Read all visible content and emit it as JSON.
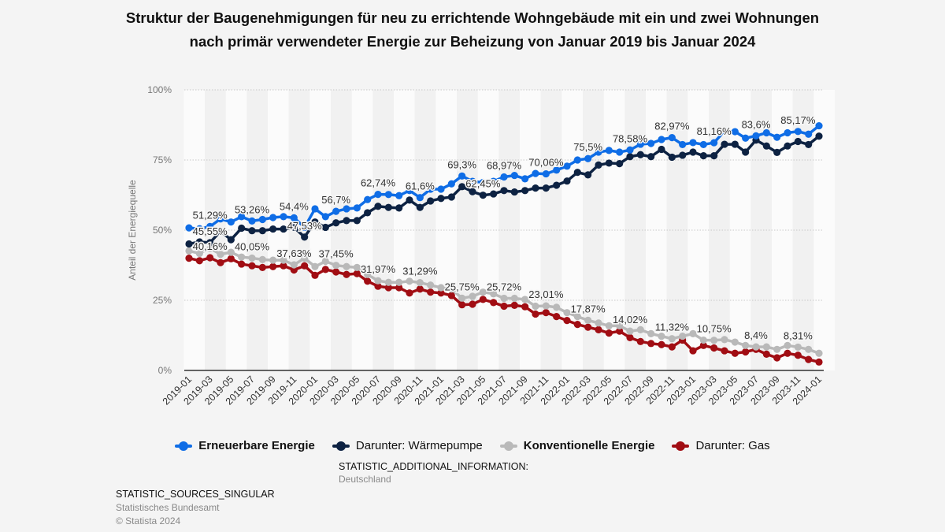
{
  "chart_data": {
    "type": "line",
    "title": "Struktur der Baugenehmigungen für neu zu errichtende Wohngebäude mit ein und zwei Wohnungen nach primär verwendeter Energie zur Beheizung von Januar 2019 bis Januar 2024",
    "ylabel": "Anteil der Energiequelle",
    "xlabel": "",
    "ylim": [
      0,
      100
    ],
    "yticks": [
      "0%",
      "25%",
      "50%",
      "75%",
      "100%"
    ],
    "ytick_values": [
      0,
      25,
      50,
      75,
      100
    ],
    "grid": true,
    "legend_placement": "bottom",
    "x": [
      "2019-01",
      "2019-02",
      "2019-03",
      "2019-04",
      "2019-05",
      "2019-06",
      "2019-07",
      "2019-08",
      "2019-09",
      "2019-10",
      "2019-11",
      "2019-12",
      "2020-01",
      "2020-02",
      "2020-03",
      "2020-04",
      "2020-05",
      "2020-06",
      "2020-07",
      "2020-08",
      "2020-09",
      "2020-10",
      "2020-11",
      "2020-12",
      "2021-01",
      "2021-02",
      "2021-03",
      "2021-04",
      "2021-05",
      "2021-06",
      "2021-07",
      "2021-08",
      "2021-09",
      "2021-10",
      "2021-11",
      "2021-12",
      "2022-01",
      "2022-02",
      "2022-03",
      "2022-04",
      "2022-05",
      "2022-06",
      "2022-07",
      "2022-08",
      "2022-09",
      "2022-10",
      "2022-11",
      "2022-12",
      "2023-01",
      "2023-02",
      "2023-03",
      "2023-04",
      "2023-05",
      "2023-06",
      "2023-07",
      "2023-08",
      "2023-09",
      "2023-10",
      "2023-11",
      "2023-12",
      "2024-01"
    ],
    "xtick_labels": [
      "2019-01",
      "2019-03",
      "2019-05",
      "2019-07",
      "2019-09",
      "2019-11",
      "2020-01",
      "2020-03",
      "2020-05",
      "2020-07",
      "2020-09",
      "2020-11",
      "2021-01",
      "2021-03",
      "2021-05",
      "2021-07",
      "2021-09",
      "2021-11",
      "2022-01",
      "2022-03",
      "2022-05",
      "2022-07",
      "2022-09",
      "2022-11",
      "2023-01",
      "2023-03",
      "2023-05",
      "2023-07",
      "2023-09",
      "2023-11",
      "2024-01"
    ],
    "series": [
      {
        "name": "Erneuerbare Energie",
        "color": "#0f6de6",
        "bold": true,
        "values": [
          50.8,
          50.5,
          51.29,
          54.0,
          52.9,
          54.8,
          53.26,
          53.8,
          54.5,
          54.8,
          54.4,
          51.0,
          57.6,
          54.8,
          56.7,
          57.6,
          57.9,
          60.9,
          62.74,
          62.7,
          62.3,
          64.1,
          61.6,
          64.6,
          64.6,
          66.5,
          69.3,
          67.4,
          67.0,
          67.4,
          68.97,
          69.5,
          68.3,
          70.2,
          70.06,
          71.4,
          72.8,
          75.0,
          75.5,
          77.8,
          78.4,
          77.8,
          78.58,
          80.6,
          80.9,
          82.3,
          82.97,
          80.5,
          81.2,
          80.5,
          81.16,
          85.3,
          85.1,
          82.8,
          83.6,
          84.7,
          83.1,
          84.7,
          85.17,
          84.2,
          87.2
        ]
      },
      {
        "name": "Darunter: Wärmepumpe",
        "color": "#0d2242",
        "bold": false,
        "values": [
          45.1,
          45.8,
          45.55,
          49.6,
          46.6,
          50.7,
          49.8,
          49.8,
          50.4,
          50.4,
          51.0,
          47.53,
          52.9,
          51.0,
          52.6,
          53.4,
          53.4,
          56.2,
          58.5,
          58.1,
          57.9,
          60.7,
          58.1,
          60.4,
          61.3,
          61.8,
          65.5,
          63.7,
          62.45,
          62.9,
          64.1,
          63.6,
          64.1,
          65.0,
          65.0,
          66.0,
          67.5,
          70.6,
          69.7,
          73.2,
          73.9,
          73.7,
          76.2,
          76.9,
          76.2,
          78.8,
          76.0,
          76.7,
          77.8,
          76.5,
          76.5,
          80.6,
          80.6,
          77.8,
          82.1,
          80.0,
          77.7,
          80.0,
          81.6,
          80.5,
          83.5
        ]
      },
      {
        "name": "Konventionelle Energie",
        "color": "#b9b9b9",
        "bold": true,
        "values": [
          42.6,
          41.7,
          43.5,
          41.4,
          42.1,
          40.4,
          40.05,
          39.5,
          39.3,
          39.3,
          37.63,
          40.0,
          37.0,
          38.9,
          37.45,
          37.0,
          36.7,
          34.2,
          31.97,
          31.4,
          31.4,
          31.8,
          31.29,
          30.4,
          29.5,
          29.0,
          25.75,
          26.4,
          27.9,
          27.3,
          25.72,
          25.7,
          25.3,
          22.9,
          23.01,
          22.5,
          20.6,
          19.2,
          17.87,
          16.9,
          15.9,
          15.9,
          14.02,
          14.5,
          13.1,
          12.2,
          11.32,
          12.2,
          13.1,
          10.8,
          10.75,
          11.0,
          10.1,
          8.9,
          8.4,
          8.4,
          7.5,
          8.9,
          8.31,
          7.5,
          6.1
        ]
      },
      {
        "name": "Darunter: Gas",
        "color": "#a10d13",
        "bold": false,
        "values": [
          40.0,
          39.1,
          40.16,
          38.4,
          39.8,
          37.9,
          37.3,
          36.7,
          37.0,
          37.3,
          35.8,
          37.3,
          33.9,
          36.0,
          35.1,
          34.2,
          34.5,
          31.8,
          30.0,
          29.5,
          29.5,
          27.6,
          29.0,
          27.9,
          27.6,
          26.7,
          23.4,
          23.6,
          25.3,
          24.2,
          22.9,
          23.2,
          22.7,
          20.1,
          20.6,
          19.2,
          17.8,
          16.4,
          15.4,
          14.5,
          13.3,
          14.0,
          11.7,
          10.3,
          9.6,
          9.2,
          8.4,
          10.8,
          7.0,
          8.9,
          8.0,
          7.0,
          6.1,
          6.6,
          7.5,
          5.8,
          4.5,
          6.1,
          5.4,
          3.9,
          3.0
        ]
      }
    ],
    "annotations": [
      {
        "series": 0,
        "x": "2019-03",
        "text": "51,29%"
      },
      {
        "series": 1,
        "x": "2019-03",
        "text": "45,55%"
      },
      {
        "series": 3,
        "x": "2019-03",
        "text": "40,16%"
      },
      {
        "series": 0,
        "x": "2019-07",
        "text": "53,26%"
      },
      {
        "series": 2,
        "x": "2019-07",
        "text": "40,05%"
      },
      {
        "series": 0,
        "x": "2019-11",
        "text": "54,4%"
      },
      {
        "series": 1,
        "x": "2019-12",
        "text": "47,53%"
      },
      {
        "series": 2,
        "x": "2019-11",
        "text": "37,63%"
      },
      {
        "series": 0,
        "x": "2020-03",
        "text": "56,7%"
      },
      {
        "series": 2,
        "x": "2020-03",
        "text": "37,45%"
      },
      {
        "series": 0,
        "x": "2020-07",
        "text": "62,74%"
      },
      {
        "series": 2,
        "x": "2020-07",
        "text": "31,97%"
      },
      {
        "series": 0,
        "x": "2020-11",
        "text": "61,6%"
      },
      {
        "series": 2,
        "x": "2020-11",
        "text": "31,29%"
      },
      {
        "series": 0,
        "x": "2021-03",
        "text": "69,3%"
      },
      {
        "series": 1,
        "x": "2021-05",
        "text": "62,45%"
      },
      {
        "series": 2,
        "x": "2021-03",
        "text": "25,75%"
      },
      {
        "series": 0,
        "x": "2021-07",
        "text": "68,97%"
      },
      {
        "series": 2,
        "x": "2021-07",
        "text": "25,72%"
      },
      {
        "series": 0,
        "x": "2021-11",
        "text": "70,06%"
      },
      {
        "series": 2,
        "x": "2021-11",
        "text": "23,01%"
      },
      {
        "series": 0,
        "x": "2022-03",
        "text": "75,5%"
      },
      {
        "series": 2,
        "x": "2022-03",
        "text": "17,87%"
      },
      {
        "series": 0,
        "x": "2022-07",
        "text": "78,58%"
      },
      {
        "series": 2,
        "x": "2022-07",
        "text": "14,02%"
      },
      {
        "series": 0,
        "x": "2022-11",
        "text": "82,97%"
      },
      {
        "series": 2,
        "x": "2022-11",
        "text": "11,32%"
      },
      {
        "series": 0,
        "x": "2023-03",
        "text": "81,16%"
      },
      {
        "series": 2,
        "x": "2023-03",
        "text": "10,75%"
      },
      {
        "series": 0,
        "x": "2023-07",
        "text": "83,6%"
      },
      {
        "series": 2,
        "x": "2023-07",
        "text": "8,4%"
      },
      {
        "series": 0,
        "x": "2023-11",
        "text": "85,17%"
      },
      {
        "series": 2,
        "x": "2023-11",
        "text": "8,31%"
      }
    ]
  },
  "additional_info": {
    "heading": "STATISTIC_ADDITIONAL_INFORMATION:",
    "region": "Deutschland"
  },
  "sources": {
    "heading": "STATISTIC_SOURCES_SINGULAR",
    "source": "Statistisches Bundesamt",
    "copyright": "© Statista 2024"
  }
}
